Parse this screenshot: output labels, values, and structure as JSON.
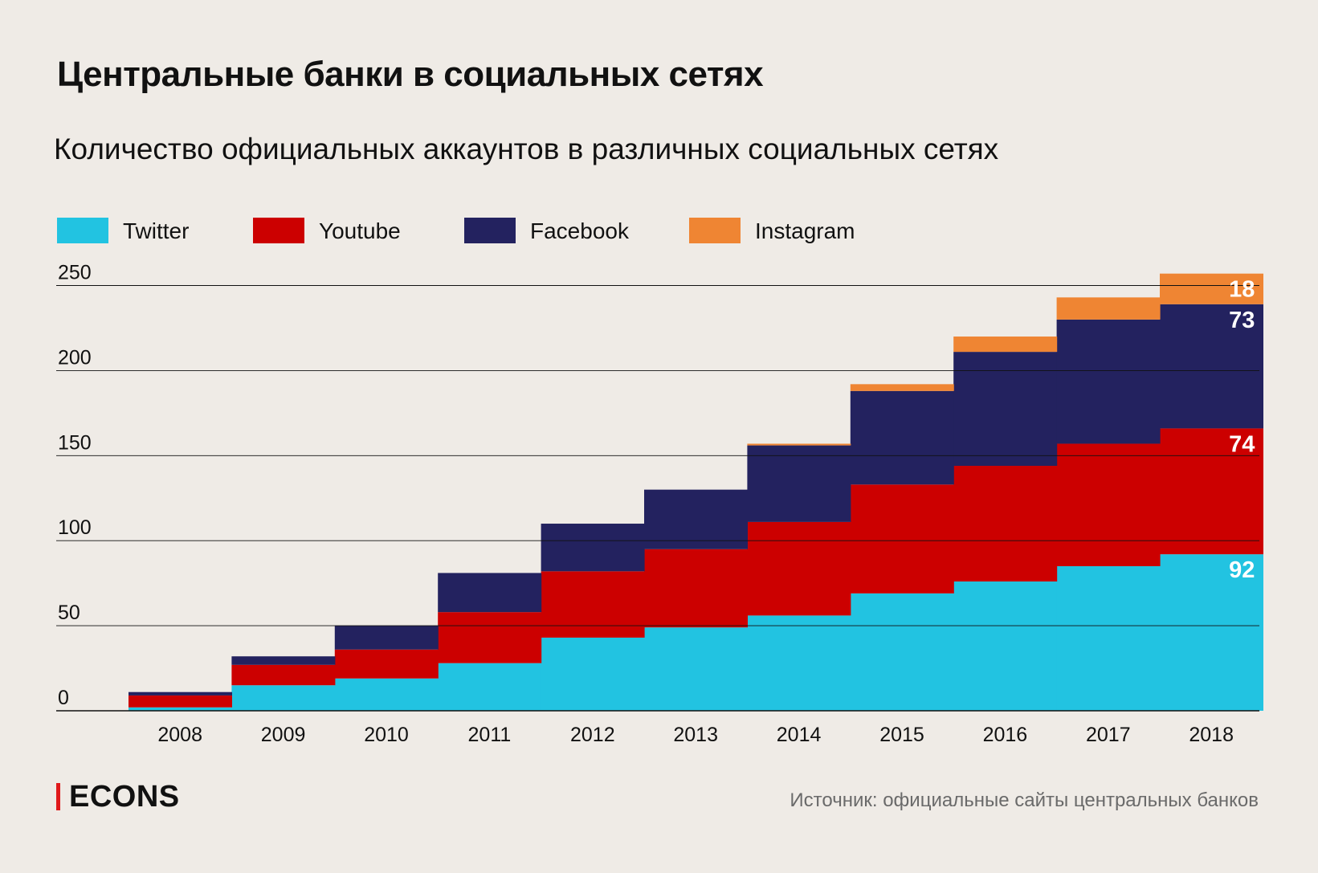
{
  "title": "Центральные банки в социальных сетях",
  "subtitle": "Количество официальных аккаунтов в различных социальных сетях",
  "brand": {
    "name": "ECONS",
    "accent_color": "#e0191b"
  },
  "source": "Источник: официальные сайты центральных банков",
  "chart_data": {
    "type": "stacked-step-area",
    "title": "Количество официальных аккаунтов в различных социальных сетях",
    "xlabel": "",
    "ylabel": "",
    "ylim": [
      0,
      250
    ],
    "yticks": [
      0,
      50,
      100,
      150,
      200,
      250
    ],
    "grid": true,
    "legend_position": "top-left",
    "categories": [
      "2008",
      "2009",
      "2010",
      "2011",
      "2012",
      "2013",
      "2014",
      "2015",
      "2016",
      "2017",
      "2018"
    ],
    "series": [
      {
        "name": "Twitter",
        "color": "#22c3e1",
        "values": [
          2,
          15,
          19,
          28,
          43,
          49,
          56,
          69,
          76,
          85,
          92
        ]
      },
      {
        "name": "Youtube",
        "color": "#cc0000",
        "values": [
          7,
          12,
          17,
          30,
          39,
          46,
          55,
          64,
          68,
          72,
          74
        ]
      },
      {
        "name": "Facebook",
        "color": "#23225f",
        "values": [
          2,
          5,
          14,
          23,
          28,
          35,
          45,
          55,
          67,
          73,
          73
        ]
      },
      {
        "name": "Instagram",
        "color": "#ef8533",
        "values": [
          0,
          0,
          0,
          0,
          0,
          0,
          1,
          4,
          9,
          13,
          18
        ]
      }
    ],
    "data_labels": [
      {
        "series": "Twitter",
        "category": "2018",
        "text": "92"
      },
      {
        "series": "Youtube",
        "category": "2018",
        "text": "74"
      },
      {
        "series": "Facebook",
        "category": "2018",
        "text": "73"
      },
      {
        "series": "Instagram",
        "category": "2018",
        "text": "18"
      }
    ]
  }
}
